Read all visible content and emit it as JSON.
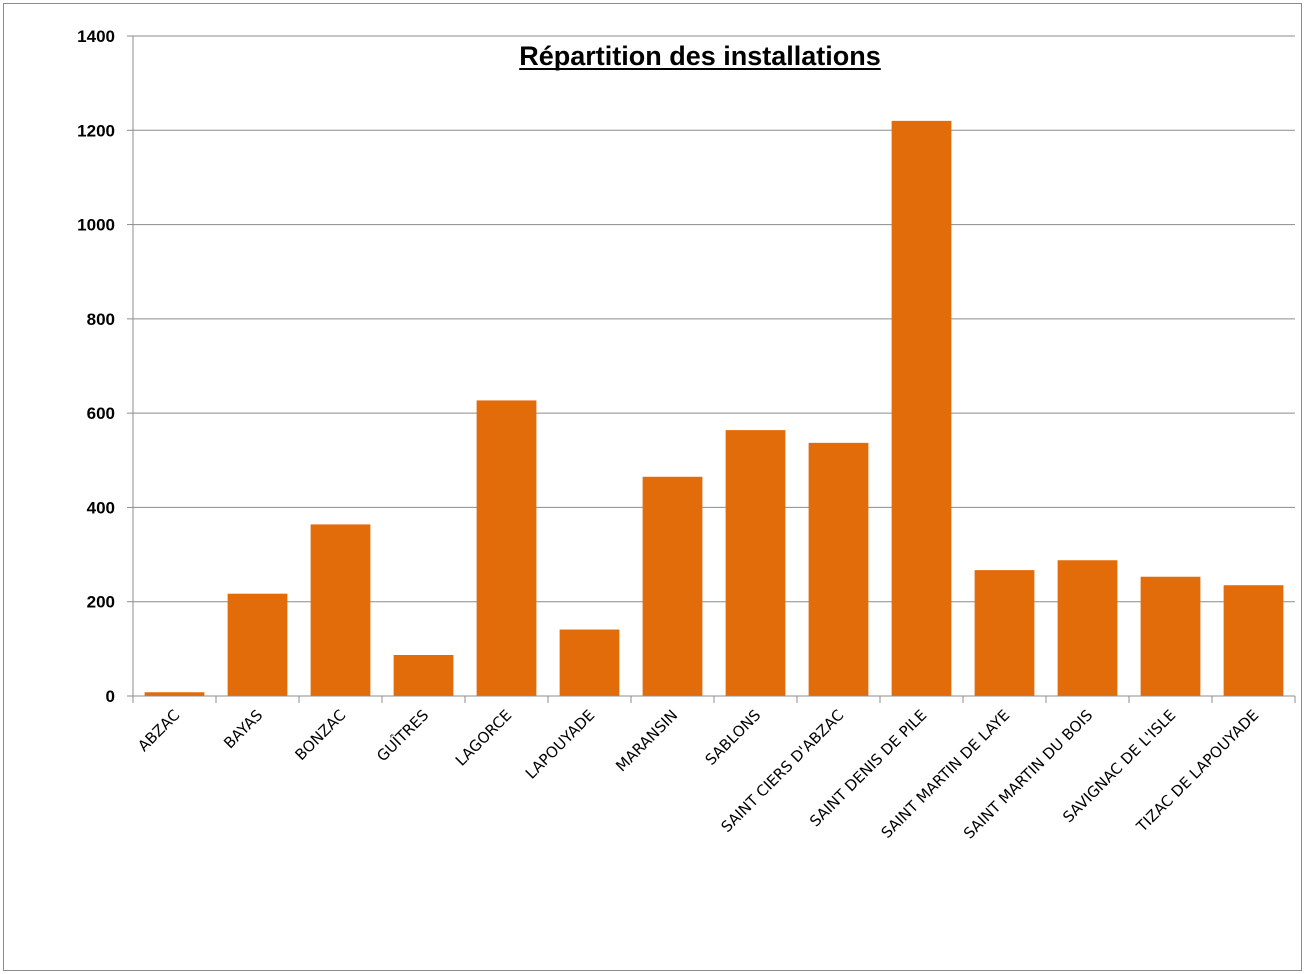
{
  "chart_data": {
    "type": "bar",
    "title": "Répartition des installations",
    "xlabel": "",
    "ylabel": "",
    "ylim": [
      0,
      1400
    ],
    "yticks": [
      "0",
      "200",
      "400",
      "600",
      "800",
      "1000",
      "1200",
      "1400"
    ],
    "categories": [
      "ABZAC",
      "BAYAS",
      "BONZAC",
      "GUÎTRES",
      "LAGORCE",
      "LAPOUYADE",
      "MARANSIN",
      "SABLONS",
      "SAINT CIERS D'ABZAC",
      "SAINT DENIS DE PILE",
      "SAINT MARTIN DE LAYE",
      "SAINT MARTIN DU BOIS",
      "SAVIGNAC DE L'ISLE",
      "TIZAC DE LAPOUYADE"
    ],
    "values": [
      8,
      217,
      364,
      87,
      627,
      141,
      465,
      564,
      537,
      1220,
      267,
      288,
      253,
      235
    ],
    "grid": true,
    "legend": "none",
    "bar_color": "#E36C0A"
  }
}
